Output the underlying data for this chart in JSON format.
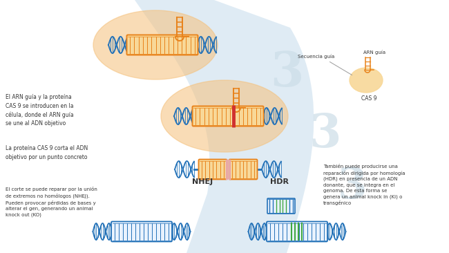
{
  "bg_color": "#ffffff",
  "dna_blue": "#2472b8",
  "dna_orange": "#e8821a",
  "blob_orange": "#f5c07a",
  "blob_alpha": 0.55,
  "blue_sw_color": "#b8d4e8",
  "blue_sw_alpha": 0.45,
  "red_color": "#d03030",
  "pink_color": "#e8a8a8",
  "green_color": "#40a840",
  "text_color": "#333333",
  "wm_color": "#ccdde8",
  "texts": {
    "arn_label": "ARN guía",
    "secuencia_label": "Secuencia guía",
    "cas9_label": "CAS 9",
    "caption1": "El ARN guía y la proteína\nCAS 9 se introducen en la\ncélula, donde el ARN guía\nse une al ADN objetivo",
    "caption2": "La proteína CAS 9 corta el ADN\nobjetivo por un punto concreto",
    "nhej_label": "NHEJ",
    "hdr_label": "HDR",
    "caption3": "El corte se puede reparar por la unión\nde extremos no homólogos (NHEJ).\nPueden provocar pérdidas de bases y\nalterar el gen, generando un animal\nknock out (KO)",
    "caption4": "También puede producirse una\nreparación dirigida por homología\n(HDR) en presencia de un ADN\ndonante, que se integra en el\ngenoma. De esta forma se\ngenera un animal knock in (Ki) o\ntransgénico"
  }
}
